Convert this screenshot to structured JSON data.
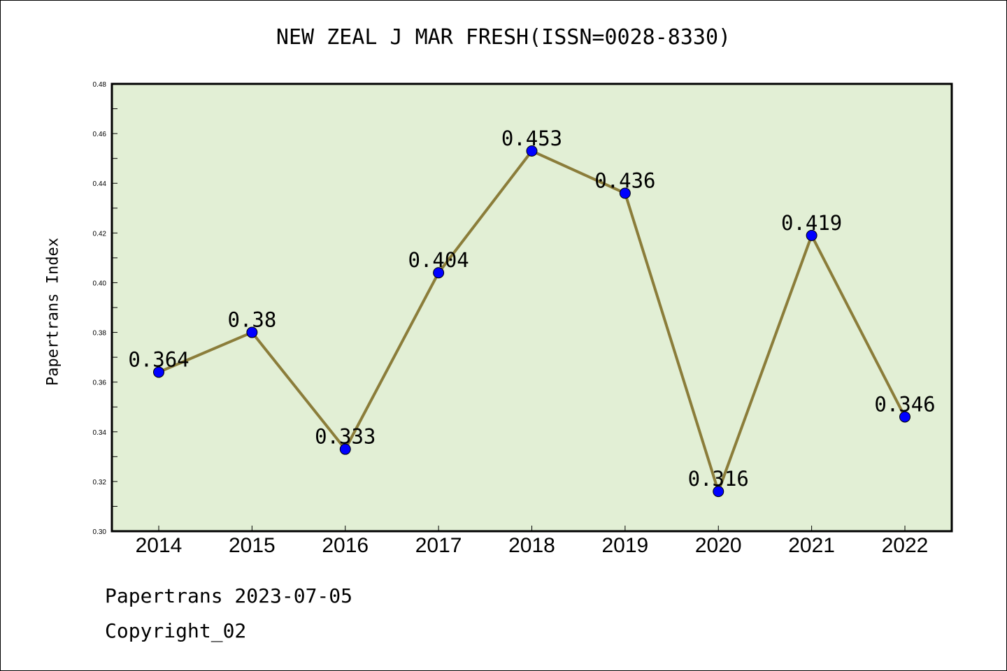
{
  "chart_data": {
    "type": "line",
    "title": "NEW ZEAL J MAR FRESH(ISSN=0028-8330)",
    "xlabel": "",
    "ylabel": "Papertrans Index",
    "categories": [
      "2014",
      "2015",
      "2016",
      "2017",
      "2018",
      "2019",
      "2020",
      "2021",
      "2022"
    ],
    "values": [
      0.364,
      0.38,
      0.333,
      0.404,
      0.453,
      0.436,
      0.316,
      0.419,
      0.346
    ],
    "data_labels": [
      "0.364",
      "0.38",
      "0.333",
      "0.404",
      "0.453",
      "0.436",
      "0.316",
      "0.419",
      "0.346"
    ],
    "ylim": [
      0.3,
      0.48
    ],
    "yticks": [
      "0.30",
      "0.32",
      "0.34",
      "0.36",
      "0.38",
      "0.40",
      "0.42",
      "0.44",
      "0.46",
      "0.48"
    ],
    "grid": false,
    "colors": {
      "plot_background": "#e2efd5",
      "line": "#8b7d3a",
      "marker": "#0000ff"
    }
  },
  "footer": {
    "line1": "Papertrans 2023-07-05",
    "line2": "Copyright_02"
  }
}
